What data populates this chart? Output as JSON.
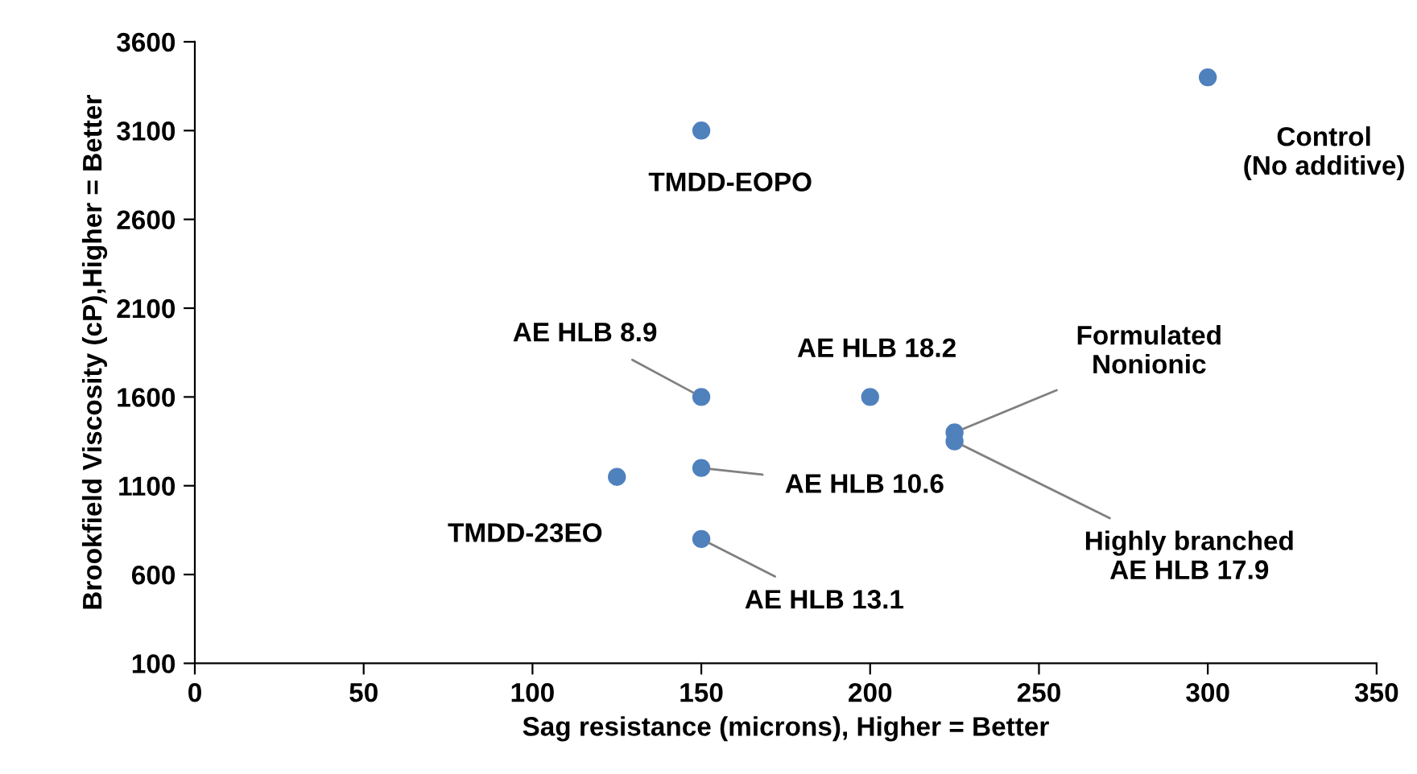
{
  "chart_data": {
    "type": "scatter",
    "xlabel": "Sag resistance (microns), Higher = Better",
    "ylabel": "Brookfield Viscosity (cP),Higher = Better",
    "x": [
      300,
      150,
      150,
      200,
      225,
      225,
      150,
      125,
      150
    ],
    "series": [
      {
        "color": "#4f81bd",
        "values": [
          3400,
          3100,
          1600,
          1600,
          1400,
          1350,
          1200,
          1150,
          800
        ]
      }
    ],
    "marker": "circle",
    "xlim": [
      0,
      350
    ],
    "xticks": [
      0,
      50,
      100,
      150,
      200,
      250,
      300,
      350
    ],
    "ylim": [
      100,
      3600
    ],
    "yticks": [
      100,
      600,
      1100,
      1600,
      2100,
      2600,
      3100,
      3600
    ],
    "grid": false,
    "legend": false,
    "annotations": [
      {
        "text": "Control\n(No additive)",
        "x": 300,
        "y": 3400
      },
      {
        "text": "TMDD-EOPO",
        "x": 150,
        "y": 3100
      },
      {
        "text": "AE HLB 8.9",
        "x": 150,
        "y": 1600
      },
      {
        "text": "AE HLB 18.2",
        "x": 200,
        "y": 1600
      },
      {
        "text": "Formulated\nNonionic",
        "x": 225,
        "y": 1400
      },
      {
        "text": "Highly branched\nAE HLB 17.9",
        "x": 225,
        "y": 1350
      },
      {
        "text": "AE HLB 10.6",
        "x": 150,
        "y": 1200
      },
      {
        "text": "TMDD-23EO",
        "x": 125,
        "y": 1150
      },
      {
        "text": "AE HLB 13.1",
        "x": 150,
        "y": 800
      }
    ]
  }
}
